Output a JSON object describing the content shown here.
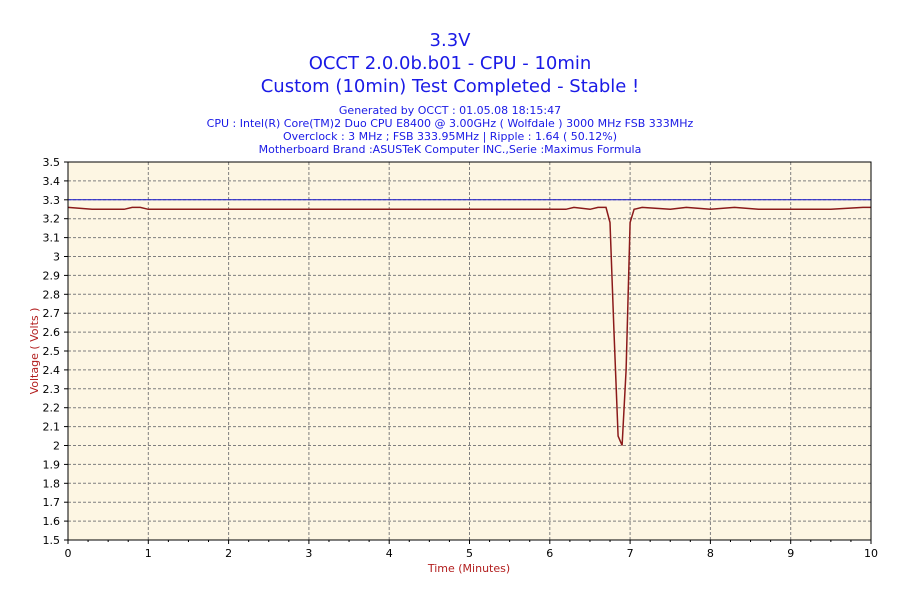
{
  "colors": {
    "title": "#1a1ae6",
    "axis_label": "#b21e1e",
    "plot_bg": "#fdf6e3",
    "grid": "#7f7f7f",
    "reference_line": "#1010c8",
    "series_line": "#8b1a1a",
    "frame": "#000000"
  },
  "chart_data": {
    "type": "line",
    "title_lines": [
      "3.3V",
      "OCCT 2.0.0b.b01 - CPU - 10min",
      "Custom (10min) Test Completed - Stable !"
    ],
    "info_lines": [
      "Generated by OCCT : 01.05.08 18:15:47",
      "CPU : Intel(R) Core(TM)2 Duo CPU E8400 @ 3.00GHz ( Wolfdale ) 3000 MHz FSB 333MHz",
      "Overclock : 3 MHz ; FSB 333.95MHz | Ripple : 1.64 ( 50.12%)",
      "Motherboard Brand :ASUSTeK Computer INC.,Serie :Maximus Formula"
    ],
    "xlabel": "Time (Minutes)",
    "ylabel": "Voltage ( Volts )",
    "xlim": [
      0,
      10
    ],
    "ylim": [
      1.5,
      3.5
    ],
    "x_ticks": [
      0,
      1,
      2,
      3,
      4,
      5,
      6,
      7,
      8,
      9,
      10
    ],
    "y_ticks": [
      1.5,
      1.6,
      1.7,
      1.8,
      1.9,
      2,
      2.1,
      2.2,
      2.3,
      2.4,
      2.5,
      2.6,
      2.7,
      2.8,
      2.9,
      3,
      3.1,
      3.2,
      3.3,
      3.4,
      3.5
    ],
    "grid": true,
    "reference_line": {
      "y": 3.3
    },
    "series": [
      {
        "x": [
          0,
          0.3,
          0.7,
          0.8,
          0.9,
          1.0,
          1.5,
          2,
          3,
          4,
          5,
          6,
          6.2,
          6.3,
          6.5,
          6.6,
          6.7,
          6.75,
          6.8,
          6.85,
          6.9,
          6.95,
          7.0,
          7.05,
          7.15,
          7.5,
          7.7,
          8.0,
          8.3,
          8.6,
          9,
          9.5,
          9.9,
          10
        ],
        "values": [
          3.26,
          3.25,
          3.25,
          3.26,
          3.26,
          3.25,
          3.25,
          3.25,
          3.25,
          3.25,
          3.25,
          3.25,
          3.25,
          3.26,
          3.25,
          3.26,
          3.26,
          3.18,
          2.6,
          2.05,
          2.0,
          2.4,
          3.18,
          3.25,
          3.26,
          3.25,
          3.26,
          3.25,
          3.26,
          3.25,
          3.25,
          3.25,
          3.26,
          3.26
        ]
      }
    ]
  }
}
